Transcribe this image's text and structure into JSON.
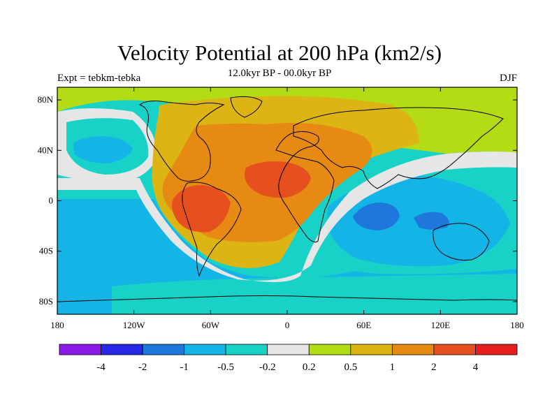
{
  "title": "Velocity Potential at 200 hPa (km2/s)",
  "subtitle": "12.0kyr BP - 00.0kyr BP",
  "left_label": "Expt = tebkm-tebka",
  "right_label": "DJF",
  "map": {
    "lat_ticks": [
      {
        "label": "80N",
        "lat": 80
      },
      {
        "label": "40N",
        "lat": 40
      },
      {
        "label": "0",
        "lat": 0
      },
      {
        "label": "40S",
        "lat": -40
      },
      {
        "label": "80S",
        "lat": -80
      }
    ],
    "lon_ticks": [
      {
        "label": "180",
        "lon": -180
      },
      {
        "label": "120W",
        "lon": -120
      },
      {
        "label": "60W",
        "lon": -60
      },
      {
        "label": "0",
        "lon": 0
      },
      {
        "label": "60E",
        "lon": 60
      },
      {
        "label": "120E",
        "lon": 120
      },
      {
        "label": "180",
        "lon": 180
      }
    ],
    "lat_range": [
      -90,
      90
    ],
    "lon_range": [
      -180,
      180
    ]
  },
  "colorbar": {
    "colors": [
      "#8c1ae6",
      "#2828e6",
      "#1e78dc",
      "#14b4e6",
      "#18d2c8",
      "#e6e6e6",
      "#b4dc14",
      "#dcb414",
      "#e68a14",
      "#e6501e",
      "#e61e1e"
    ],
    "labels": [
      "-4",
      "-2",
      "-1",
      "-0.5",
      "-0.2",
      "0.2",
      "0.5",
      "1",
      "2",
      "4"
    ]
  }
}
